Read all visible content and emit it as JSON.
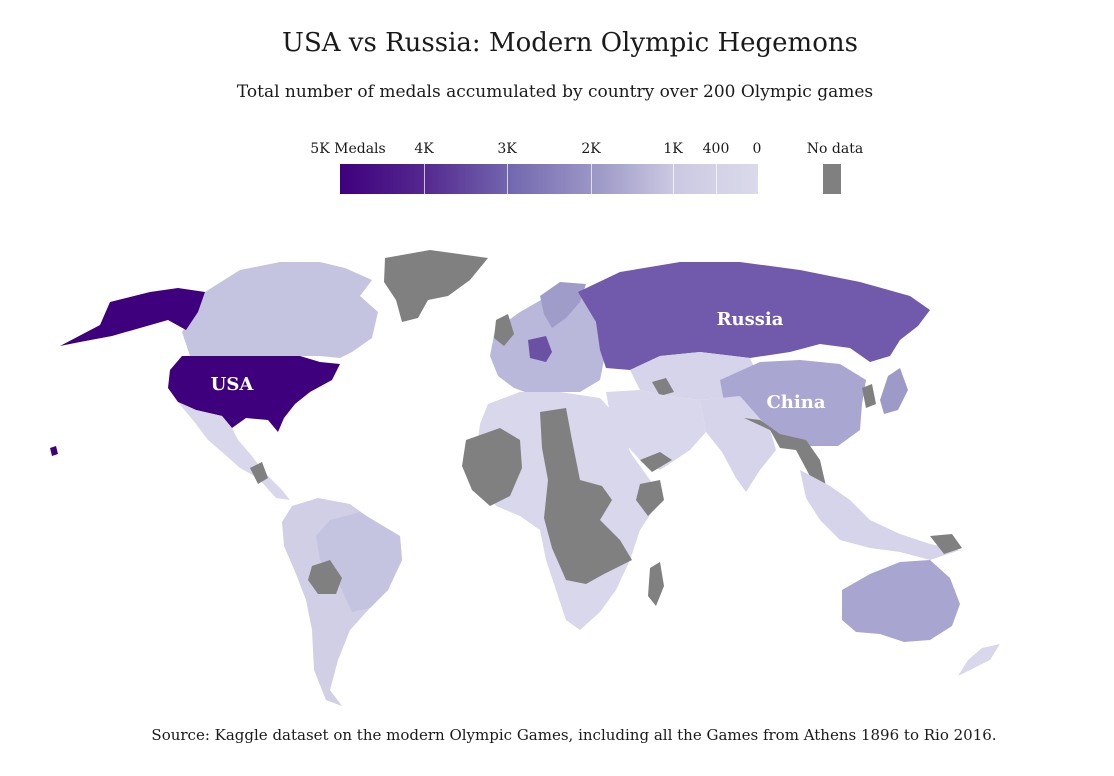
{
  "title": "USA vs Russia: Modern Olympic Hegemons",
  "subtitle": "Total number of medals accumulated by country over 200 Olympic games",
  "legend": {
    "labels": [
      "5K Medals",
      "4K",
      "3K",
      "2K",
      "1K",
      "400",
      "0"
    ],
    "no_data_label": "No data",
    "colors": {
      "max": "#3f007d",
      "min": "#dadaeb",
      "no_data": "#808080"
    }
  },
  "map_labels": {
    "usa": "USA",
    "russia": "Russia",
    "china": "China"
  },
  "source": "Source: Kaggle dataset on the modern Olympic Games, including all the Games from Athens 1896 to Rio 2016."
}
